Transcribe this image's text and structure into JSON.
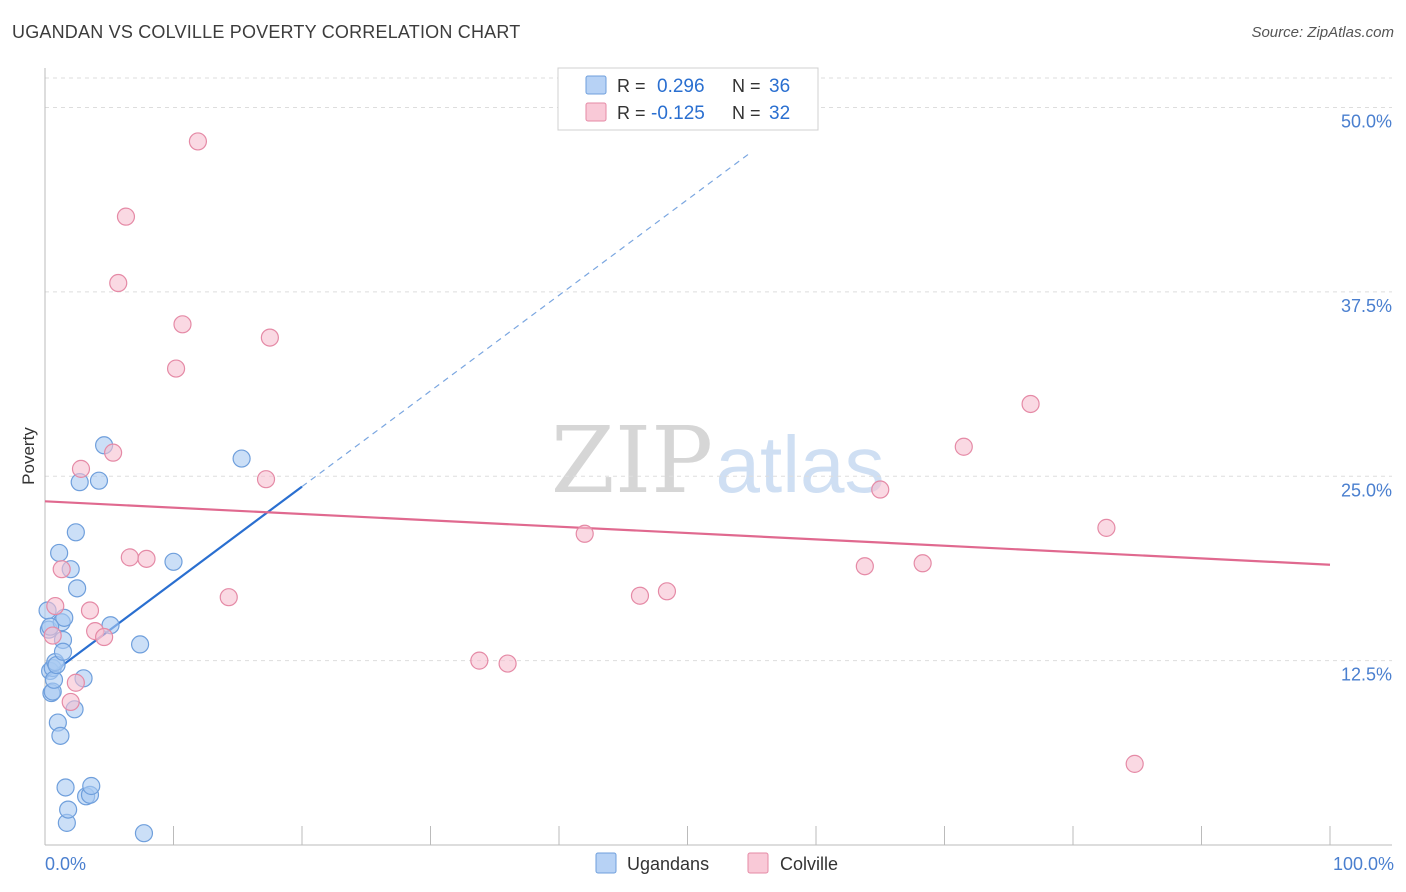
{
  "header": {
    "title": "UGANDAN VS COLVILLE POVERTY CORRELATION CHART",
    "source": "Source: ZipAtlas.com"
  },
  "watermark": {
    "zip": "ZIP",
    "atlas": "atlas"
  },
  "colors": {
    "blue": "#2a6fd0",
    "blue_fill": "#a9c9f2",
    "pink": "#e0698f",
    "pink_fill": "#f6bfd0",
    "axis_label": "#4a7fcf",
    "grid": "#dddddd"
  },
  "legend": {
    "rows": [
      {
        "r_label": "R =",
        "r_value": "0.296",
        "n_label": "N =",
        "n_value": "36"
      },
      {
        "r_label": "R =",
        "r_value": "-0.125",
        "n_label": "N =",
        "n_value": "32"
      }
    ]
  },
  "bottom_legend": [
    "Ugandans",
    "Colville"
  ],
  "chart_data": {
    "type": "scatter",
    "title": "UGANDAN VS COLVILLE POVERTY CORRELATION CHART",
    "xlabel": "",
    "ylabel": "Poverty",
    "xlim": [
      0,
      100
    ],
    "ylim": [
      0,
      52
    ],
    "x_tick_labels": [
      {
        "value": 0,
        "label": "0.0%"
      },
      {
        "value": 100,
        "label": "100.0%"
      }
    ],
    "y_tick_labels": [
      {
        "value": 12.5,
        "label": "12.5%"
      },
      {
        "value": 25.0,
        "label": "25.0%"
      },
      {
        "value": 37.5,
        "label": "37.5%"
      },
      {
        "value": 50.0,
        "label": "50.0%"
      }
    ],
    "x_minor_ticks": [
      10,
      20,
      30,
      40,
      50,
      60,
      70,
      80,
      90,
      100
    ],
    "series": [
      {
        "name": "Ugandans",
        "r": 0.296,
        "n": 36,
        "trend": {
          "x0": 0,
          "y0": 11.3,
          "x1": 20,
          "y1": 24.3,
          "dash_to_x": 55,
          "dash_to_y": 47.0
        },
        "points": [
          [
            0.2,
            15.9
          ],
          [
            0.3,
            14.6
          ],
          [
            0.4,
            11.8
          ],
          [
            0.5,
            10.3
          ],
          [
            0.6,
            10.4
          ],
          [
            0.6,
            12.0
          ],
          [
            0.7,
            11.2
          ],
          [
            0.8,
            12.4
          ],
          [
            0.9,
            12.2
          ],
          [
            1.0,
            8.3
          ],
          [
            1.1,
            19.8
          ],
          [
            1.2,
            7.4
          ],
          [
            1.3,
            15.1
          ],
          [
            1.4,
            13.9
          ],
          [
            1.4,
            13.1
          ],
          [
            1.5,
            15.4
          ],
          [
            1.6,
            3.9
          ],
          [
            1.7,
            1.5
          ],
          [
            1.8,
            2.4
          ],
          [
            2.0,
            18.7
          ],
          [
            2.3,
            9.2
          ],
          [
            2.4,
            21.2
          ],
          [
            2.5,
            17.4
          ],
          [
            2.7,
            24.6
          ],
          [
            3.0,
            11.3
          ],
          [
            3.2,
            3.3
          ],
          [
            3.5,
            3.4
          ],
          [
            3.6,
            4.0
          ],
          [
            4.2,
            24.7
          ],
          [
            4.6,
            27.1
          ],
          [
            5.1,
            14.9
          ],
          [
            7.4,
            13.6
          ],
          [
            7.7,
            0.8
          ],
          [
            10.0,
            19.2
          ],
          [
            15.3,
            26.2
          ],
          [
            0.4,
            14.8
          ]
        ]
      },
      {
        "name": "Colville",
        "r": -0.125,
        "n": 32,
        "trend": {
          "x0": 0,
          "y0": 23.3,
          "x1": 100,
          "y1": 19.0
        },
        "points": [
          [
            0.6,
            14.2
          ],
          [
            0.8,
            16.2
          ],
          [
            1.3,
            18.7
          ],
          [
            2.0,
            9.7
          ],
          [
            2.4,
            11.0
          ],
          [
            2.8,
            25.5
          ],
          [
            3.5,
            15.9
          ],
          [
            3.9,
            14.5
          ],
          [
            4.6,
            14.1
          ],
          [
            5.3,
            26.6
          ],
          [
            5.7,
            38.1
          ],
          [
            6.3,
            42.6
          ],
          [
            6.6,
            19.5
          ],
          [
            7.9,
            19.4
          ],
          [
            10.2,
            32.3
          ],
          [
            10.7,
            35.3
          ],
          [
            11.9,
            47.7
          ],
          [
            14.3,
            16.8
          ],
          [
            17.2,
            24.8
          ],
          [
            17.5,
            34.4
          ],
          [
            33.8,
            12.5
          ],
          [
            36.0,
            12.3
          ],
          [
            42.0,
            21.1
          ],
          [
            46.3,
            16.9
          ],
          [
            48.4,
            17.2
          ],
          [
            63.8,
            18.9
          ],
          [
            65.0,
            24.1
          ],
          [
            68.3,
            19.1
          ],
          [
            71.5,
            27.0
          ],
          [
            76.7,
            29.9
          ],
          [
            82.6,
            21.5
          ],
          [
            84.8,
            5.5
          ]
        ]
      }
    ]
  }
}
